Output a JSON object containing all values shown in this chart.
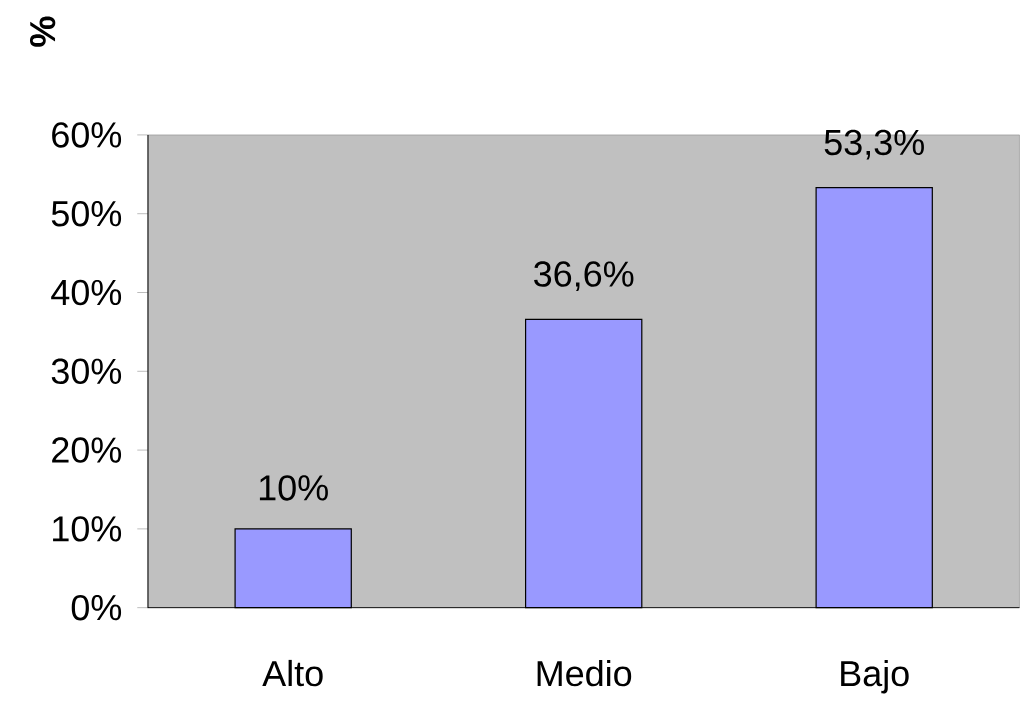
{
  "chart_data": {
    "type": "bar",
    "ylabel": "%",
    "categories": [
      "Alto",
      "Medio",
      "Bajo"
    ],
    "values": [
      10,
      36.6,
      53.3
    ],
    "value_labels": [
      "10%",
      "36,6%",
      "53,3%"
    ],
    "color": "#9999ff",
    "ylim": [
      0,
      60
    ],
    "yticks": [
      {
        "value": 0,
        "label": "0%"
      },
      {
        "value": 10,
        "label": "10%"
      },
      {
        "value": 20,
        "label": "20%"
      },
      {
        "value": 30,
        "label": "30%"
      },
      {
        "value": 40,
        "label": "40%"
      },
      {
        "value": 50,
        "label": "50%"
      },
      {
        "value": 60,
        "label": "60%"
      }
    ]
  }
}
